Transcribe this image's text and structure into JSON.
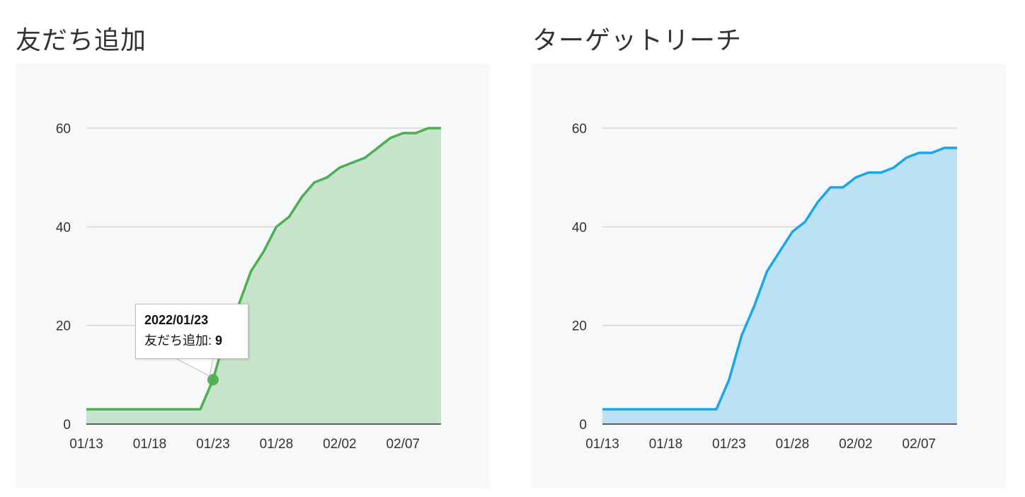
{
  "chart_data": [
    {
      "type": "area",
      "title": "友だち追加",
      "x": [
        "01/13",
        "01/14",
        "01/15",
        "01/16",
        "01/17",
        "01/18",
        "01/19",
        "01/20",
        "01/21",
        "01/22",
        "01/23",
        "01/24",
        "01/25",
        "01/26",
        "01/27",
        "01/28",
        "01/29",
        "01/30",
        "01/31",
        "02/01",
        "02/02",
        "02/03",
        "02/04",
        "02/05",
        "02/06",
        "02/07",
        "02/08",
        "02/09",
        "02/10"
      ],
      "series": [
        {
          "values": [
            3,
            3,
            3,
            3,
            3,
            3,
            3,
            3,
            3,
            3,
            9,
            18,
            24,
            31,
            35,
            40,
            42,
            46,
            49,
            50,
            52,
            53,
            54,
            56,
            58,
            59,
            59,
            60,
            60
          ]
        }
      ],
      "x_ticks": [
        "01/13",
        "01/18",
        "01/23",
        "01/28",
        "02/02",
        "02/07"
      ],
      "y_ticks": [
        0,
        20,
        40,
        60
      ],
      "ylim": [
        0,
        60
      ],
      "color": "#4caf50",
      "fill": "#c8e3cb",
      "tooltip": {
        "date": "2022/01/23",
        "label": "友だち追加: ",
        "value": "9"
      }
    },
    {
      "type": "area",
      "title": "ターゲットリーチ",
      "x": [
        "01/13",
        "01/14",
        "01/15",
        "01/16",
        "01/17",
        "01/18",
        "01/19",
        "01/20",
        "01/21",
        "01/22",
        "01/23",
        "01/24",
        "01/25",
        "01/26",
        "01/27",
        "01/28",
        "01/29",
        "01/30",
        "01/31",
        "02/01",
        "02/02",
        "02/03",
        "02/04",
        "02/05",
        "02/06",
        "02/07",
        "02/08",
        "02/09",
        "02/10"
      ],
      "series": [
        {
          "values": [
            3,
            3,
            3,
            3,
            3,
            3,
            3,
            3,
            3,
            3,
            9,
            18,
            24,
            31,
            35,
            39,
            41,
            45,
            48,
            48,
            50,
            51,
            51,
            52,
            54,
            55,
            55,
            56,
            56
          ]
        }
      ],
      "x_ticks": [
        "01/13",
        "01/18",
        "01/23",
        "01/28",
        "02/02",
        "02/07"
      ],
      "y_ticks": [
        0,
        20,
        40,
        60
      ],
      "ylim": [
        0,
        60
      ],
      "color": "#1aa6e8",
      "fill": "#bce1f5"
    }
  ]
}
